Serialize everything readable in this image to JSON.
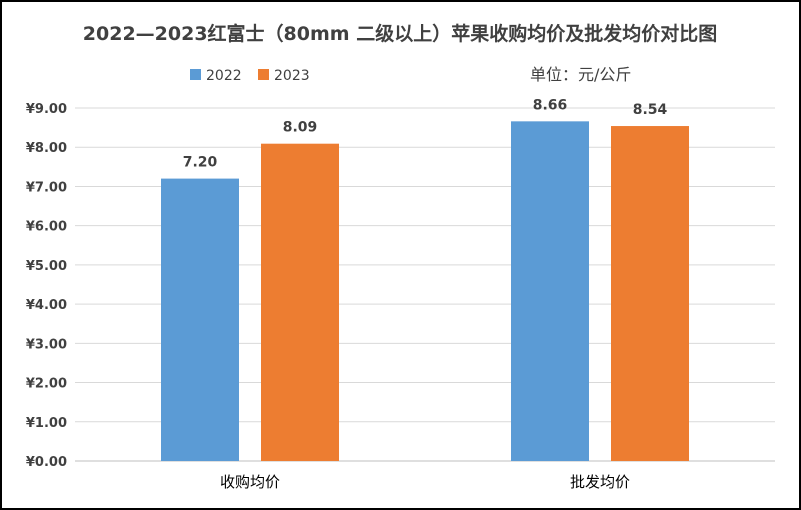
{
  "chart_data": {
    "type": "bar",
    "title": "2022—2023红富士（80mm 二级以上）苹果收购均价及批发均价对比图",
    "unit_note": "单位：元/公斤",
    "categories": [
      "收购均价",
      "批发均价"
    ],
    "series": [
      {
        "name": "2022",
        "values": [
          7.2,
          8.66
        ],
        "labels": [
          "7.20",
          "8.66"
        ],
        "color": "#5B9BD5"
      },
      {
        "name": "2023",
        "values": [
          8.09,
          8.54
        ],
        "labels": [
          "8.09",
          "8.54"
        ],
        "color": "#ED7D31"
      }
    ],
    "y_ticks": [
      {
        "value": 0,
        "label": "¥0.00"
      },
      {
        "value": 1,
        "label": "¥1.00"
      },
      {
        "value": 2,
        "label": "¥2.00"
      },
      {
        "value": 3,
        "label": "¥3.00"
      },
      {
        "value": 4,
        "label": "¥4.00"
      },
      {
        "value": 5,
        "label": "¥5.00"
      },
      {
        "value": 6,
        "label": "¥6.00"
      },
      {
        "value": 7,
        "label": "¥7.00"
      },
      {
        "value": 8,
        "label": "¥8.00"
      },
      {
        "value": 9,
        "label": "¥9.00"
      }
    ],
    "ylim": [
      0,
      9
    ],
    "grid": true,
    "legend_position": "top-left"
  }
}
